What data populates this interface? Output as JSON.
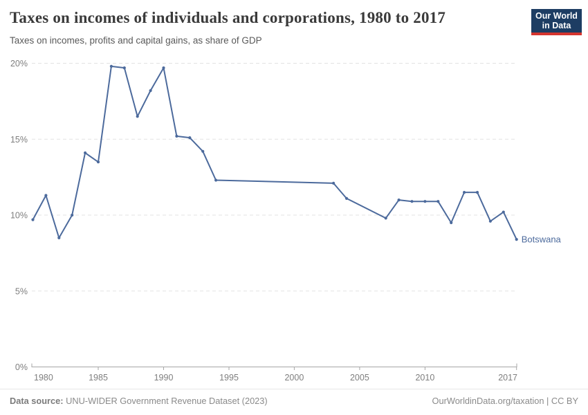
{
  "header": {
    "logo": {
      "line1": "Our World",
      "line2": "in Data",
      "bg_color": "#1d3d63",
      "bar_color": "#d5352f"
    }
  },
  "chart_data": {
    "type": "line",
    "title": "Taxes on incomes of individuals and corporations, 1980 to 2017",
    "subtitle": "Taxes on incomes, profits and capital gains, as share of GDP",
    "xlabel": "",
    "ylabel": "",
    "y_unit": "%",
    "xlim": [
      1980,
      2017
    ],
    "ylim": [
      0,
      20
    ],
    "x_ticks": [
      1980,
      1985,
      1990,
      1995,
      2000,
      2005,
      2010,
      2017
    ],
    "y_ticks": [
      0,
      5,
      10,
      15,
      20
    ],
    "grid": "horizontal-dashed",
    "legend_position": "end-of-line-label",
    "series": [
      {
        "name": "Botswana",
        "color": "#4C6A9C",
        "points": [
          [
            1980,
            9.7
          ],
          [
            1981,
            11.3
          ],
          [
            1982,
            8.5
          ],
          [
            1983,
            10.0
          ],
          [
            1984,
            14.1
          ],
          [
            1985,
            13.5
          ],
          [
            1986,
            19.8
          ],
          [
            1987,
            19.7
          ],
          [
            1988,
            16.5
          ],
          [
            1989,
            18.2
          ],
          [
            1990,
            19.7
          ],
          [
            1991,
            15.2
          ],
          [
            1992,
            15.1
          ],
          [
            1993,
            14.2
          ],
          [
            1994,
            12.3
          ],
          [
            2003,
            12.1
          ],
          [
            2004,
            11.1
          ],
          [
            2007,
            9.8
          ],
          [
            2008,
            11.0
          ],
          [
            2009,
            10.9
          ],
          [
            2010,
            10.9
          ],
          [
            2011,
            10.9
          ],
          [
            2012,
            9.5
          ],
          [
            2013,
            11.5
          ],
          [
            2014,
            11.5
          ],
          [
            2015,
            9.6
          ],
          [
            2016,
            10.2
          ],
          [
            2017,
            8.4
          ]
        ]
      }
    ]
  },
  "footer": {
    "source_label": "Data source:",
    "source_text": " UNU-WIDER Government Revenue Dataset (2023)",
    "link_text": "OurWorldinData.org/taxation | CC BY"
  }
}
